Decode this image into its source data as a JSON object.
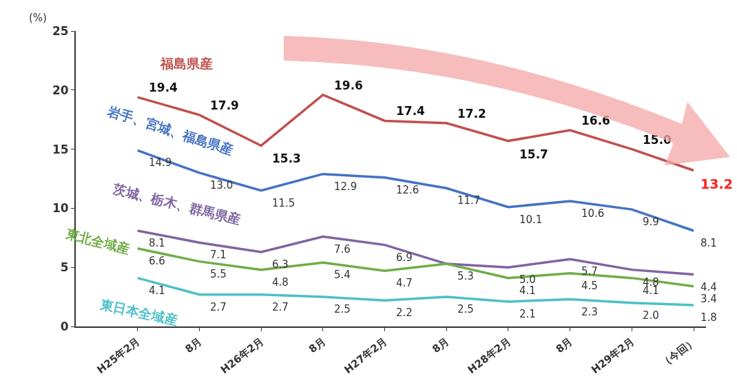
{
  "chart_data": {
    "type": "line",
    "ylabel": "(%)",
    "categories": [
      "H25年2月",
      "8月",
      "H26年2月",
      "8月",
      "H27年2月",
      "8月",
      "H28年2月",
      "8月",
      "H29年2月",
      "（今回）"
    ],
    "ylim": [
      0,
      25
    ],
    "yticks": [
      0,
      5,
      10,
      15,
      20,
      25
    ],
    "grid": false,
    "legend": false,
    "marker": "none",
    "line_style": "solid",
    "series": [
      {
        "name": "福島県産",
        "color": "#c0504d",
        "values": [
          19.4,
          17.9,
          15.3,
          19.6,
          17.4,
          17.2,
          15.7,
          16.6,
          15.0,
          13.2
        ],
        "value_labels": [
          "19.4",
          "17.9",
          "15.3",
          "19.6",
          "17.4",
          "17.2",
          "15.7",
          "16.6",
          "15.0",
          "13.2"
        ]
      },
      {
        "name": "岩手、宮城、福島県産",
        "color": "#4472c4",
        "values": [
          14.9,
          13.0,
          11.5,
          12.9,
          12.6,
          11.7,
          10.1,
          10.6,
          9.9,
          8.1
        ],
        "value_labels": [
          "14.9",
          "13.0",
          "11.5",
          "12.9",
          "12.6",
          "11.7",
          "10.1",
          "10.6",
          "9.9",
          "8.1"
        ]
      },
      {
        "name": "茨城、栃木、群馬県産",
        "color": "#8064a2",
        "values": [
          8.1,
          7.1,
          6.3,
          7.6,
          6.9,
          5.3,
          5.0,
          5.7,
          4.8,
          4.4
        ],
        "value_labels": [
          "8.1",
          "7.1",
          "6.3",
          "7.6",
          "6.9",
          "5.3",
          "5.0",
          "5.7",
          "4.8",
          "4.4"
        ]
      },
      {
        "name": "東北全域産",
        "color": "#70ad47",
        "values": [
          6.6,
          5.5,
          4.8,
          5.4,
          4.7,
          5.3,
          4.1,
          4.5,
          4.1,
          3.4
        ],
        "value_labels": [
          "6.6",
          "5.5",
          "4.8",
          "5.4",
          "4.7",
          null,
          "4.1",
          "4.5",
          "4.1",
          "3.4"
        ]
      },
      {
        "name": "東日本全域産",
        "color": "#4bc0c8",
        "values": [
          4.1,
          2.7,
          2.7,
          2.5,
          2.2,
          2.5,
          2.1,
          2.3,
          2.0,
          1.8
        ],
        "value_labels": [
          "4.1",
          "2.7",
          "2.7",
          "2.5",
          "2.2",
          "2.5",
          "2.1",
          "2.3",
          "2.0",
          "1.8"
        ]
      }
    ]
  }
}
